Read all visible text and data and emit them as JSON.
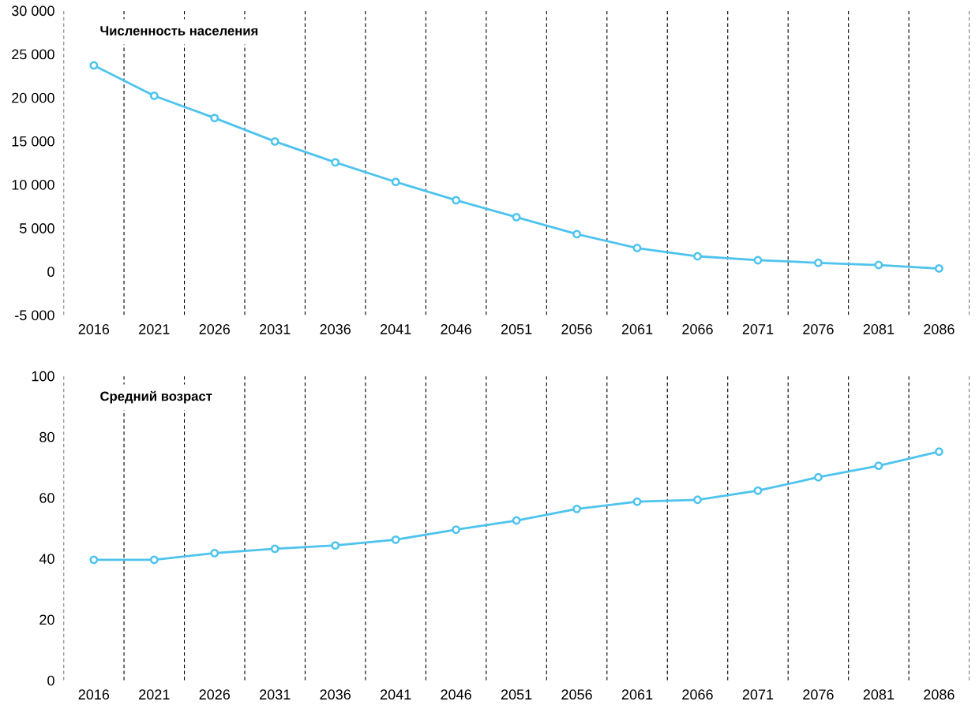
{
  "chart_data": [
    {
      "type": "line",
      "title": "Численность населения",
      "categories": [
        "2016",
        "2021",
        "2026",
        "2031",
        "2036",
        "2041",
        "2046",
        "2051",
        "2056",
        "2061",
        "2066",
        "2071",
        "2076",
        "2081",
        "2086"
      ],
      "series": [
        {
          "color": "#4dc3ee",
          "values": [
            23700,
            20200,
            17650,
            14950,
            12550,
            10300,
            8200,
            6250,
            4300,
            2700,
            1750,
            1300,
            1000,
            750,
            350
          ]
        }
      ],
      "ylim": [
        -5000,
        30000
      ],
      "yticks": [
        {
          "value": -5000,
          "label": "-5 000"
        },
        0,
        {
          "value": 5000,
          "label": "5 000"
        },
        {
          "value": 10000,
          "label": "10 000"
        },
        {
          "value": 15000,
          "label": "15 000"
        },
        {
          "value": 20000,
          "label": "20 000"
        },
        {
          "value": 25000,
          "label": "25 000"
        },
        {
          "value": 30000,
          "label": "30 000"
        }
      ],
      "grid": "x",
      "marker": "circle",
      "line_style": "solid",
      "legend": false
    },
    {
      "type": "line",
      "title": "Средний возраст",
      "categories": [
        "2016",
        "2021",
        "2026",
        "2031",
        "2036",
        "2041",
        "2046",
        "2051",
        "2056",
        "2061",
        "2066",
        "2071",
        "2076",
        "2081",
        "2086"
      ],
      "series": [
        {
          "color": "#4dc3ee",
          "values": [
            39.6,
            39.6,
            41.8,
            43.2,
            44.3,
            46.2,
            49.5,
            52.5,
            56.3,
            58.7,
            59.3,
            62.3,
            66.7,
            70.5,
            75.1
          ]
        }
      ],
      "ylim": [
        0,
        100
      ],
      "yticks": [
        0,
        20,
        40,
        60,
        80,
        100
      ],
      "grid": "x",
      "marker": "circle",
      "line_style": "solid",
      "legend": false
    }
  ]
}
